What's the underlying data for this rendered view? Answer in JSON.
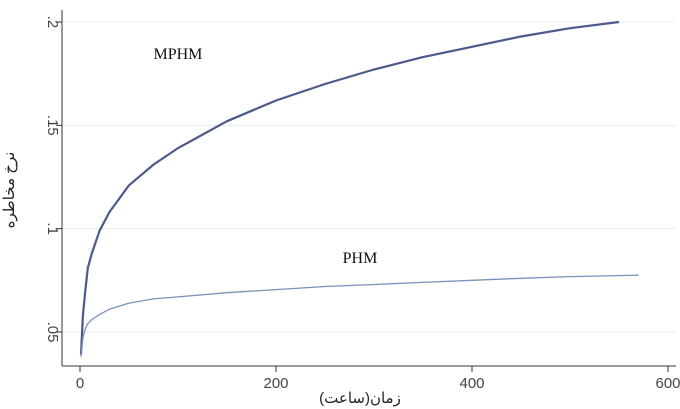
{
  "chart_data": {
    "type": "line",
    "xlabel": "زمان(ساعت)",
    "ylabel": "نرخ مخاطره",
    "xlim": [
      0,
      600
    ],
    "ylim": [
      0.035,
      0.2
    ],
    "xticks": [
      "0",
      "200",
      "400",
      "600"
    ],
    "yticks": [
      ".05",
      ".1",
      ".15",
      ".2"
    ],
    "grid": "horizontal",
    "series": [
      {
        "name": "MPHM",
        "color": "#4a5a8a",
        "x": [
          1,
          3,
          5,
          8,
          12,
          20,
          30,
          50,
          75,
          100,
          150,
          200,
          250,
          300,
          350,
          400,
          450,
          500,
          550
        ],
        "y": [
          0.039,
          0.058,
          0.068,
          0.081,
          0.088,
          0.099,
          0.108,
          0.121,
          0.131,
          0.139,
          0.152,
          0.162,
          0.17,
          0.177,
          0.183,
          0.188,
          0.193,
          0.197,
          0.2
        ]
      },
      {
        "name": "PHM",
        "color": "#7a92bb",
        "x": [
          1,
          3,
          5,
          8,
          12,
          20,
          30,
          50,
          75,
          100,
          150,
          200,
          250,
          300,
          350,
          400,
          450,
          500,
          570
        ],
        "y": [
          0.038,
          0.047,
          0.051,
          0.054,
          0.056,
          0.0585,
          0.061,
          0.064,
          0.066,
          0.067,
          0.069,
          0.0705,
          0.072,
          0.073,
          0.074,
          0.075,
          0.076,
          0.0768,
          0.0775
        ]
      }
    ],
    "annotations": [
      {
        "text": "MPHM",
        "x": 75,
        "y": 0.182
      },
      {
        "text": "PHM",
        "x": 268,
        "y": 0.0835
      }
    ]
  }
}
